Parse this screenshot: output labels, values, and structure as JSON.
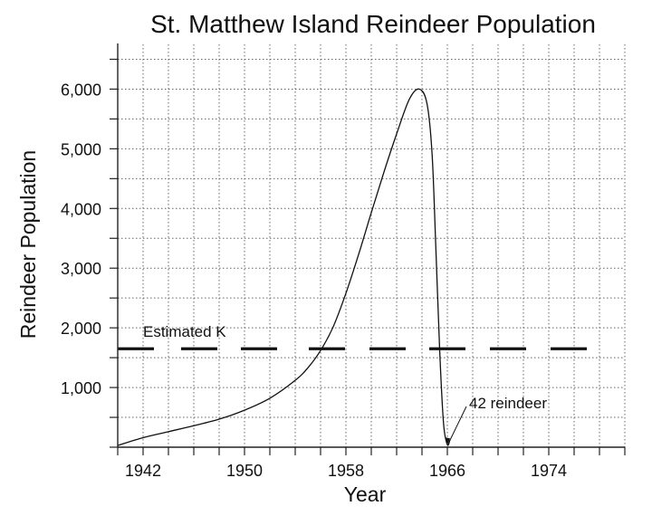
{
  "chart_data": {
    "type": "line",
    "title": "St. Matthew Island Reindeer Population",
    "xlabel": "Year",
    "ylabel": "Reindeer Population",
    "xlim": [
      1940,
      1980
    ],
    "ylim": [
      0,
      6750
    ],
    "x_ticks": [
      1942,
      1950,
      1958,
      1966,
      1974
    ],
    "x_tick_labels": [
      "1942",
      "1950",
      "1958",
      "1966",
      "1974"
    ],
    "x_minor_tick_step": 2,
    "y_ticks": [
      1000,
      2000,
      3000,
      4000,
      5000,
      6000
    ],
    "y_tick_labels": [
      "1,000",
      "2,000",
      "3,000",
      "4,000",
      "5,000",
      "6,000"
    ],
    "y_minor_tick_step": 500,
    "grid": true,
    "grid_style": "dotted",
    "series": [
      {
        "name": "Reindeer population",
        "x": [
          1940,
          1942,
          1944,
          1946,
          1948,
          1950,
          1952,
          1954,
          1955,
          1956,
          1957,
          1958,
          1959,
          1960,
          1961,
          1962,
          1963,
          1963.8,
          1964.4,
          1964.8,
          1965.1,
          1965.4,
          1965.7,
          1966,
          1966.2
        ],
        "y": [
          30,
          160,
          260,
          360,
          470,
          620,
          820,
          1120,
          1330,
          1620,
          2020,
          2580,
          3230,
          3930,
          4610,
          5250,
          5830,
          6000,
          5750,
          4900,
          3300,
          1600,
          400,
          42,
          120
        ]
      }
    ],
    "reference_lines": [
      {
        "name": "Estimated K",
        "y": 1650,
        "style": "dashed"
      }
    ],
    "annotations": [
      {
        "text": "Estimated K",
        "x": 1942,
        "y": 1950
      },
      {
        "text": "42 reindeer",
        "x": 1968,
        "y": 800,
        "arrow_to": {
          "x": 1966,
          "y": 42
        }
      }
    ]
  },
  "colors": {
    "line": "#111111",
    "grid": "#666666",
    "axis": "#222222",
    "background": "#ffffff"
  }
}
